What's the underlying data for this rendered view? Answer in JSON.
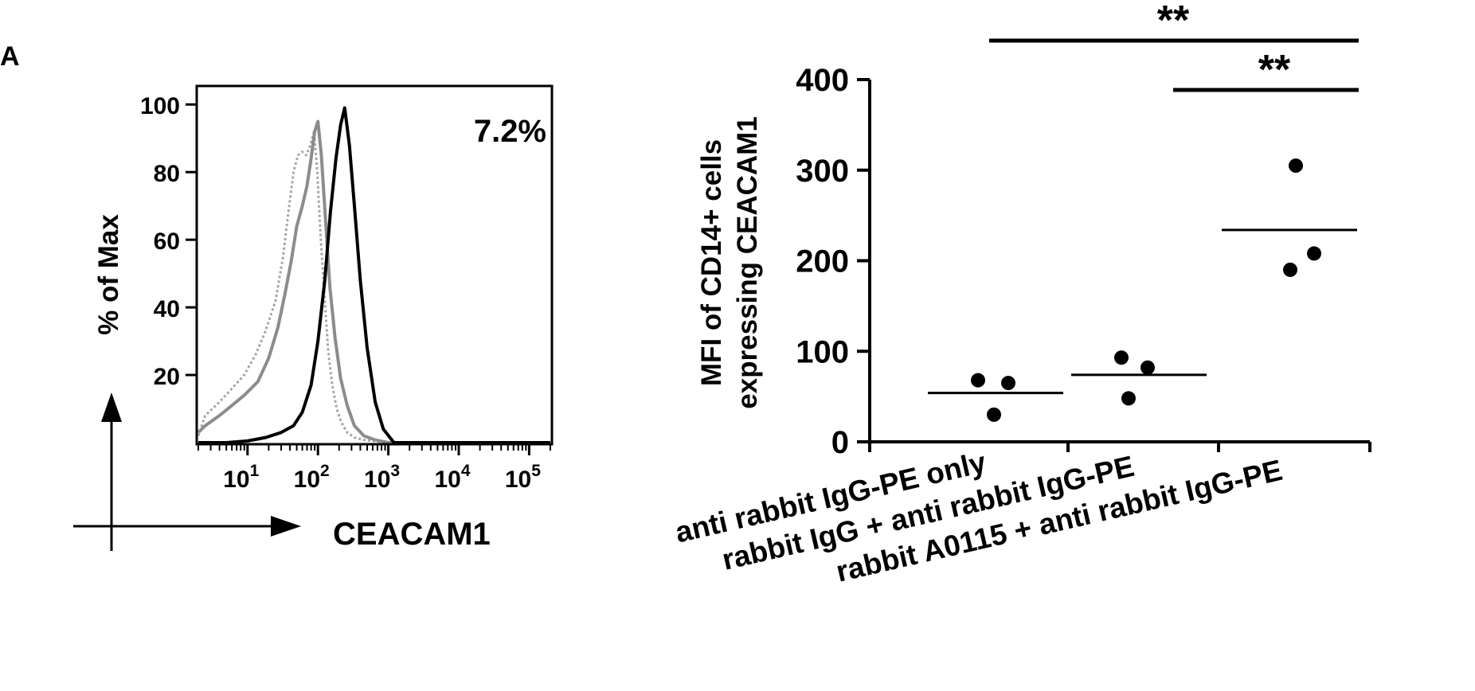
{
  "panel_label": "A",
  "chart_data": [
    {
      "type": "line",
      "xlabel": "CEACAM1",
      "ylabel": "% of Max",
      "x_scale": "log",
      "xlim": [
        2,
        200000
      ],
      "ylim": [
        0,
        105
      ],
      "x_tick_labels": [
        {
          "value": 10,
          "base": "10",
          "exp": "1"
        },
        {
          "value": 100,
          "base": "10",
          "exp": "2"
        },
        {
          "value": 1000,
          "base": "10",
          "exp": "3"
        },
        {
          "value": 10000,
          "base": "10",
          "exp": "4"
        },
        {
          "value": 100000,
          "base": "10",
          "exp": "5"
        }
      ],
      "y_ticks": [
        20,
        40,
        60,
        80,
        100
      ],
      "annotation": "7.2%",
      "series": [
        {
          "style": "dotted",
          "color": "#a6a6a6",
          "x": [
            2,
            2.5,
            4,
            6,
            9,
            13,
            18,
            25,
            32,
            38,
            45,
            52,
            60,
            68,
            78,
            88,
            98,
            110,
            125,
            140,
            160,
            185,
            215,
            260,
            330,
            450,
            700,
            1200,
            200000
          ],
          "y": [
            2,
            8,
            12,
            16,
            20,
            26,
            33,
            42,
            55,
            68,
            80,
            85,
            86,
            85,
            88,
            92,
            80,
            60,
            42,
            27,
            17,
            10,
            6,
            3,
            1.5,
            0.8,
            0.3,
            0,
            0
          ]
        },
        {
          "style": "solid",
          "color": "#8c8c8c",
          "x": [
            2,
            2.5,
            4,
            6,
            9,
            14,
            20,
            27,
            34,
            42,
            50,
            60,
            70,
            80,
            90,
            100,
            112,
            128,
            148,
            175,
            210,
            260,
            330,
            450,
            650,
            1000,
            200000
          ],
          "y": [
            3,
            5,
            8,
            11,
            14,
            18,
            25,
            34,
            44,
            54,
            64,
            70,
            76,
            84,
            92,
            95,
            85,
            66,
            46,
            31,
            19,
            11,
            5,
            2,
            0.8,
            0,
            0
          ]
        },
        {
          "style": "solid",
          "color": "#000000",
          "x": [
            2,
            5,
            10,
            18,
            30,
            45,
            60,
            80,
            100,
            125,
            150,
            180,
            210,
            240,
            280,
            330,
            400,
            500,
            650,
            850,
            1200,
            200000
          ],
          "y": [
            0,
            0,
            0.5,
            1.5,
            3,
            5,
            9,
            17,
            30,
            48,
            68,
            84,
            94,
            99,
            88,
            70,
            48,
            28,
            12,
            4,
            0,
            0
          ]
        }
      ]
    },
    {
      "type": "scatter",
      "ylabel_lines": [
        "MFI of CD14+ cells",
        "expressing CEACAM1"
      ],
      "ylim": [
        0,
        400
      ],
      "y_ticks": [
        0,
        100,
        200,
        300,
        400
      ],
      "categories": [
        "anti rabbit IgG-PE only",
        "rabbit IgG + anti rabbit IgG-PE",
        "rabbit A0115 + anti rabbit IgG-PE"
      ],
      "points": [
        [
          68,
          65,
          30
        ],
        [
          93,
          82,
          48
        ],
        [
          305,
          208,
          190
        ]
      ],
      "means": [
        54,
        74,
        234
      ],
      "significance": [
        {
          "from": 0,
          "to": 2,
          "label": "**"
        },
        {
          "from": 1,
          "to": 2,
          "label": "**"
        }
      ]
    }
  ]
}
